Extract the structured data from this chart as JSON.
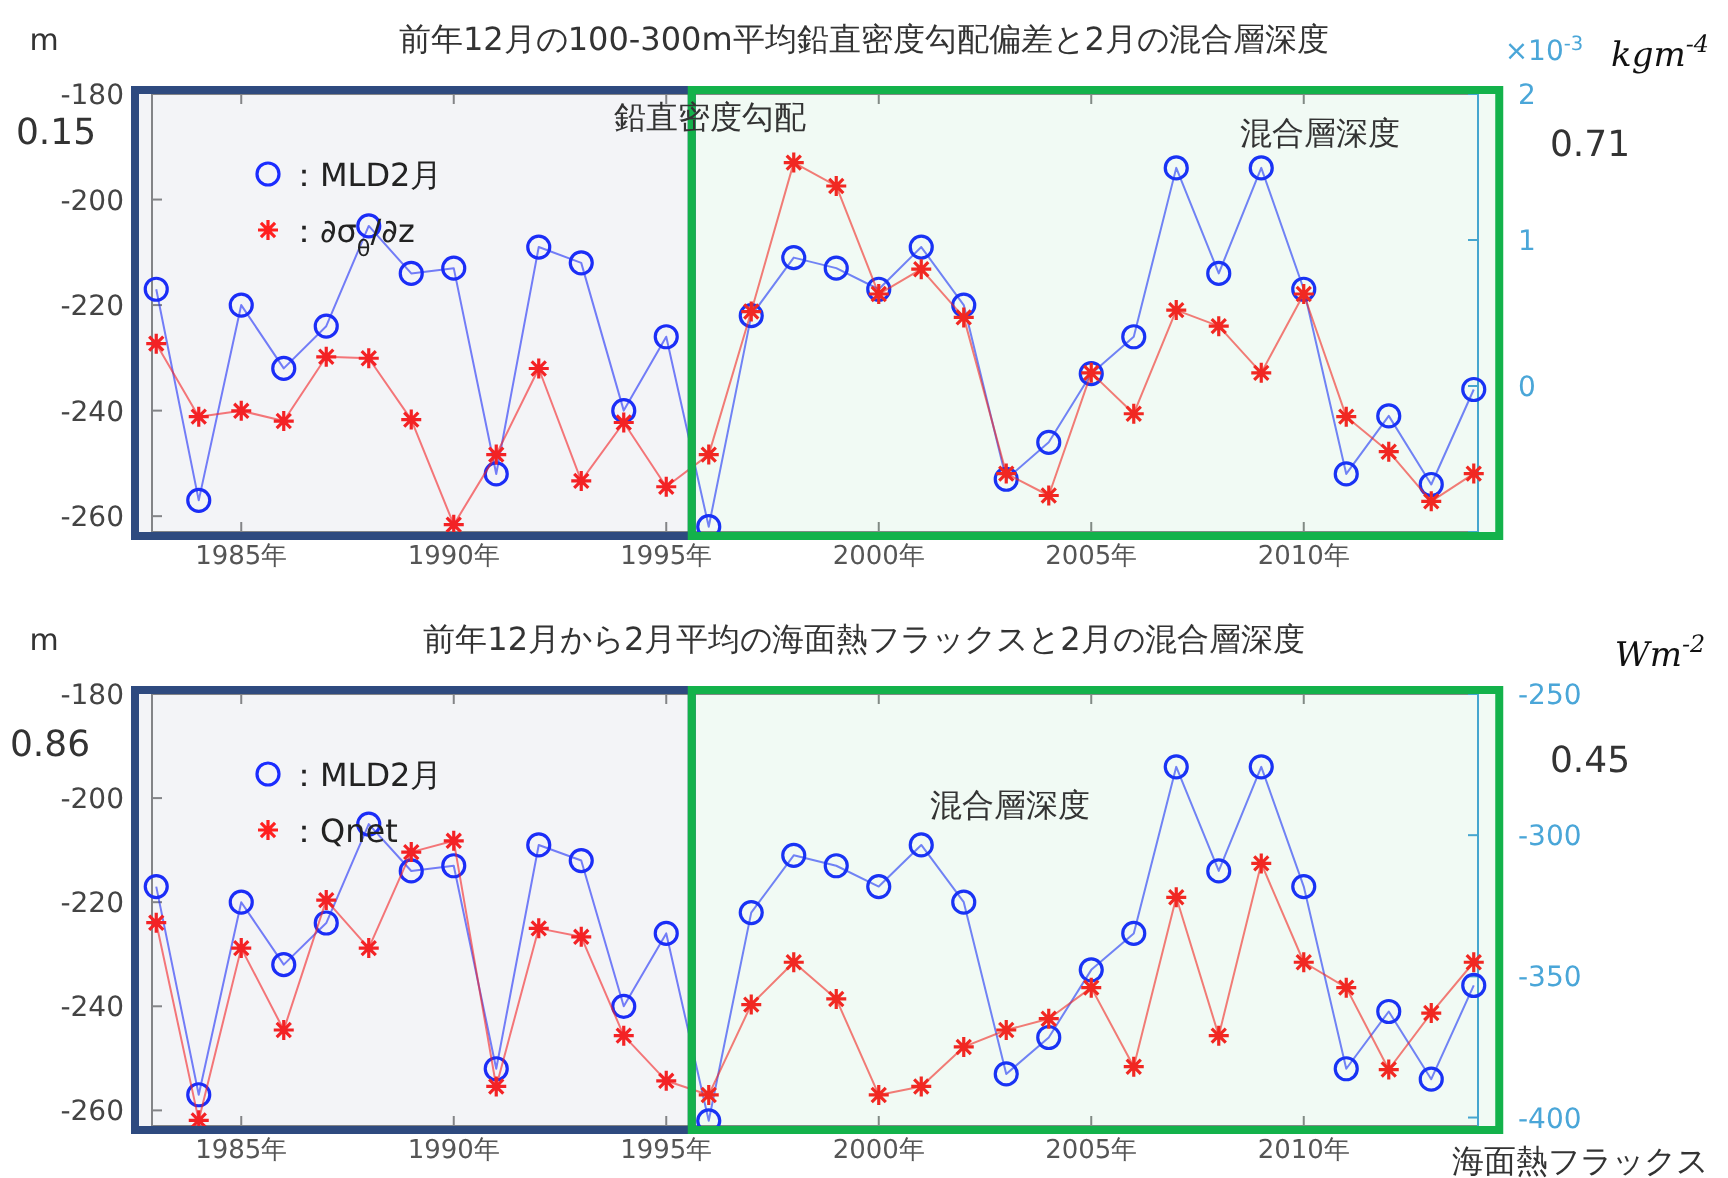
{
  "chart_data": [
    {
      "type": "line",
      "title": "前年12月の100-300m平均鉛直密度勾配偏差と2月の混合層深度",
      "ylabel": "m",
      "y2label": "kgm$^{-4}$",
      "annotations": [
        "0.15",
        "鉛直密度勾配",
        "混合層深度",
        "0.71",
        "×10$^{-3}$"
      ],
      "x": [
        1983,
        1984,
        1985,
        1986,
        1987,
        1988,
        1989,
        1990,
        1991,
        1992,
        1993,
        1994,
        1995,
        1996,
        1997,
        1998,
        1999,
        2000,
        2001,
        2002,
        2003,
        2004,
        2005,
        2006,
        2007,
        2008,
        2009,
        2010,
        2011,
        2012,
        2013,
        2014
      ],
      "xlim": [
        1982.9,
        2014.1
      ],
      "xticks": [
        {
          "value": 1985,
          "label": "1985年"
        },
        {
          "value": 1990,
          "label": "1990年"
        },
        {
          "value": 1995,
          "label": "1995年"
        },
        {
          "value": 2000,
          "label": "2000年"
        },
        {
          "value": 2005,
          "label": "2005年"
        },
        {
          "value": 2010,
          "label": "2010年"
        }
      ],
      "ylim": [
        -263,
        -180
      ],
      "yticks": [
        -180,
        -200,
        -220,
        -240,
        -260
      ],
      "y2lim": [
        -1,
        2
      ],
      "y2ticks": [
        2,
        1,
        0,
        {
          "value": -1,
          "label": null
        }
      ],
      "legend": "top left",
      "bands": [
        {
          "axis": "x",
          "from": 1982.5,
          "to": 1995.6,
          "color": "#2e4a7f"
        },
        {
          "axis": "x",
          "from": 1995.6,
          "to": 2014.6,
          "color": "#13b24b"
        }
      ],
      "series": [
        {
          "name": "：MLD2月",
          "color": "#1a2cff",
          "marker": "circle",
          "values": [
            -217,
            -257,
            -220,
            -232,
            -224,
            -205,
            -214,
            -213,
            -252,
            -209,
            -212,
            -240,
            -226,
            -262,
            -222,
            -211,
            -213,
            -217,
            -209,
            -220,
            -253,
            -246,
            -233,
            -226,
            -194,
            -214,
            -194,
            -217,
            -252,
            -241,
            -254,
            -236
          ]
        },
        {
          "name": "：∂σ$_{θ}$/∂z",
          "color": "#ff2020",
          "marker": "cross",
          "axis": "y2",
          "values": [
            0.29,
            -0.21,
            -0.17,
            -0.24,
            0.2,
            0.19,
            -0.23,
            -0.95,
            -0.47,
            0.12,
            -0.65,
            -0.25,
            -0.69,
            -0.47,
            0.51,
            1.53,
            1.37,
            0.63,
            0.8,
            0.47,
            -0.6,
            -0.75,
            0.09,
            -0.19,
            0.52,
            0.41,
            0.09,
            0.63,
            -0.21,
            -0.45,
            -0.79,
            -0.6
          ]
        }
      ]
    },
    {
      "type": "line",
      "title": "前年12月から2月平均の海面熱フラックスと2月の混合層深度",
      "ylabel": "m",
      "y2label": "Wm$^{-2}$",
      "annotations": [
        "0.86",
        "混合層深度",
        "海面熱フラックス",
        "0.45"
      ],
      "x": [
        1983,
        1984,
        1985,
        1986,
        1987,
        1988,
        1989,
        1990,
        1991,
        1992,
        1993,
        1994,
        1995,
        1996,
        1997,
        1998,
        1999,
        2000,
        2001,
        2002,
        2003,
        2004,
        2005,
        2006,
        2007,
        2008,
        2009,
        2010,
        2011,
        2012,
        2013,
        2014
      ],
      "xlim": [
        1982.9,
        2014.1
      ],
      "xticks": [
        {
          "value": 1985,
          "label": "1985年"
        },
        {
          "value": 1990,
          "label": "1990年"
        },
        {
          "value": 1995,
          "label": "1995年"
        },
        {
          "value": 2000,
          "label": "2000年"
        },
        {
          "value": 2005,
          "label": "2005年"
        },
        {
          "value": 2010,
          "label": "2010年"
        }
      ],
      "ylim": [
        -263,
        -180
      ],
      "yticks": [
        -180,
        -200,
        -220,
        -240,
        -260
      ],
      "y2lim": [
        -403,
        -250
      ],
      "y2ticks": [
        -250,
        -300,
        -350,
        -400
      ],
      "legend": "top left",
      "bands": [
        {
          "axis": "x",
          "from": 1982.5,
          "to": 1995.6,
          "color": "#2e4a7f"
        },
        {
          "axis": "x",
          "from": 1995.6,
          "to": 2014.6,
          "color": "#13b24b"
        }
      ],
      "series": [
        {
          "name": "：MLD2月",
          "color": "#1a2cff",
          "marker": "circle",
          "values": [
            -217,
            -257,
            -220,
            -232,
            -224,
            -205,
            -214,
            -213,
            -252,
            -209,
            -212,
            -240,
            -226,
            -262,
            -222,
            -211,
            -213,
            -217,
            -209,
            -220,
            -253,
            -246,
            -233,
            -226,
            -194,
            -214,
            -194,
            -217,
            -252,
            -241,
            -254,
            -236
          ]
        },
        {
          "name": "：Qnet",
          "color": "#ff2020",
          "marker": "cross",
          "axis": "y2",
          "values": [
            -331,
            -401,
            -340,
            -369,
            -323,
            -340,
            -306,
            -302,
            -389,
            -333,
            -336,
            -371,
            -387,
            -392,
            -360,
            -345,
            -358,
            -392,
            -389,
            -375,
            -369,
            -365,
            -354,
            -382,
            -322,
            -371,
            -310,
            -345,
            -354,
            -383,
            -363,
            -345
          ]
        }
      ]
    }
  ]
}
